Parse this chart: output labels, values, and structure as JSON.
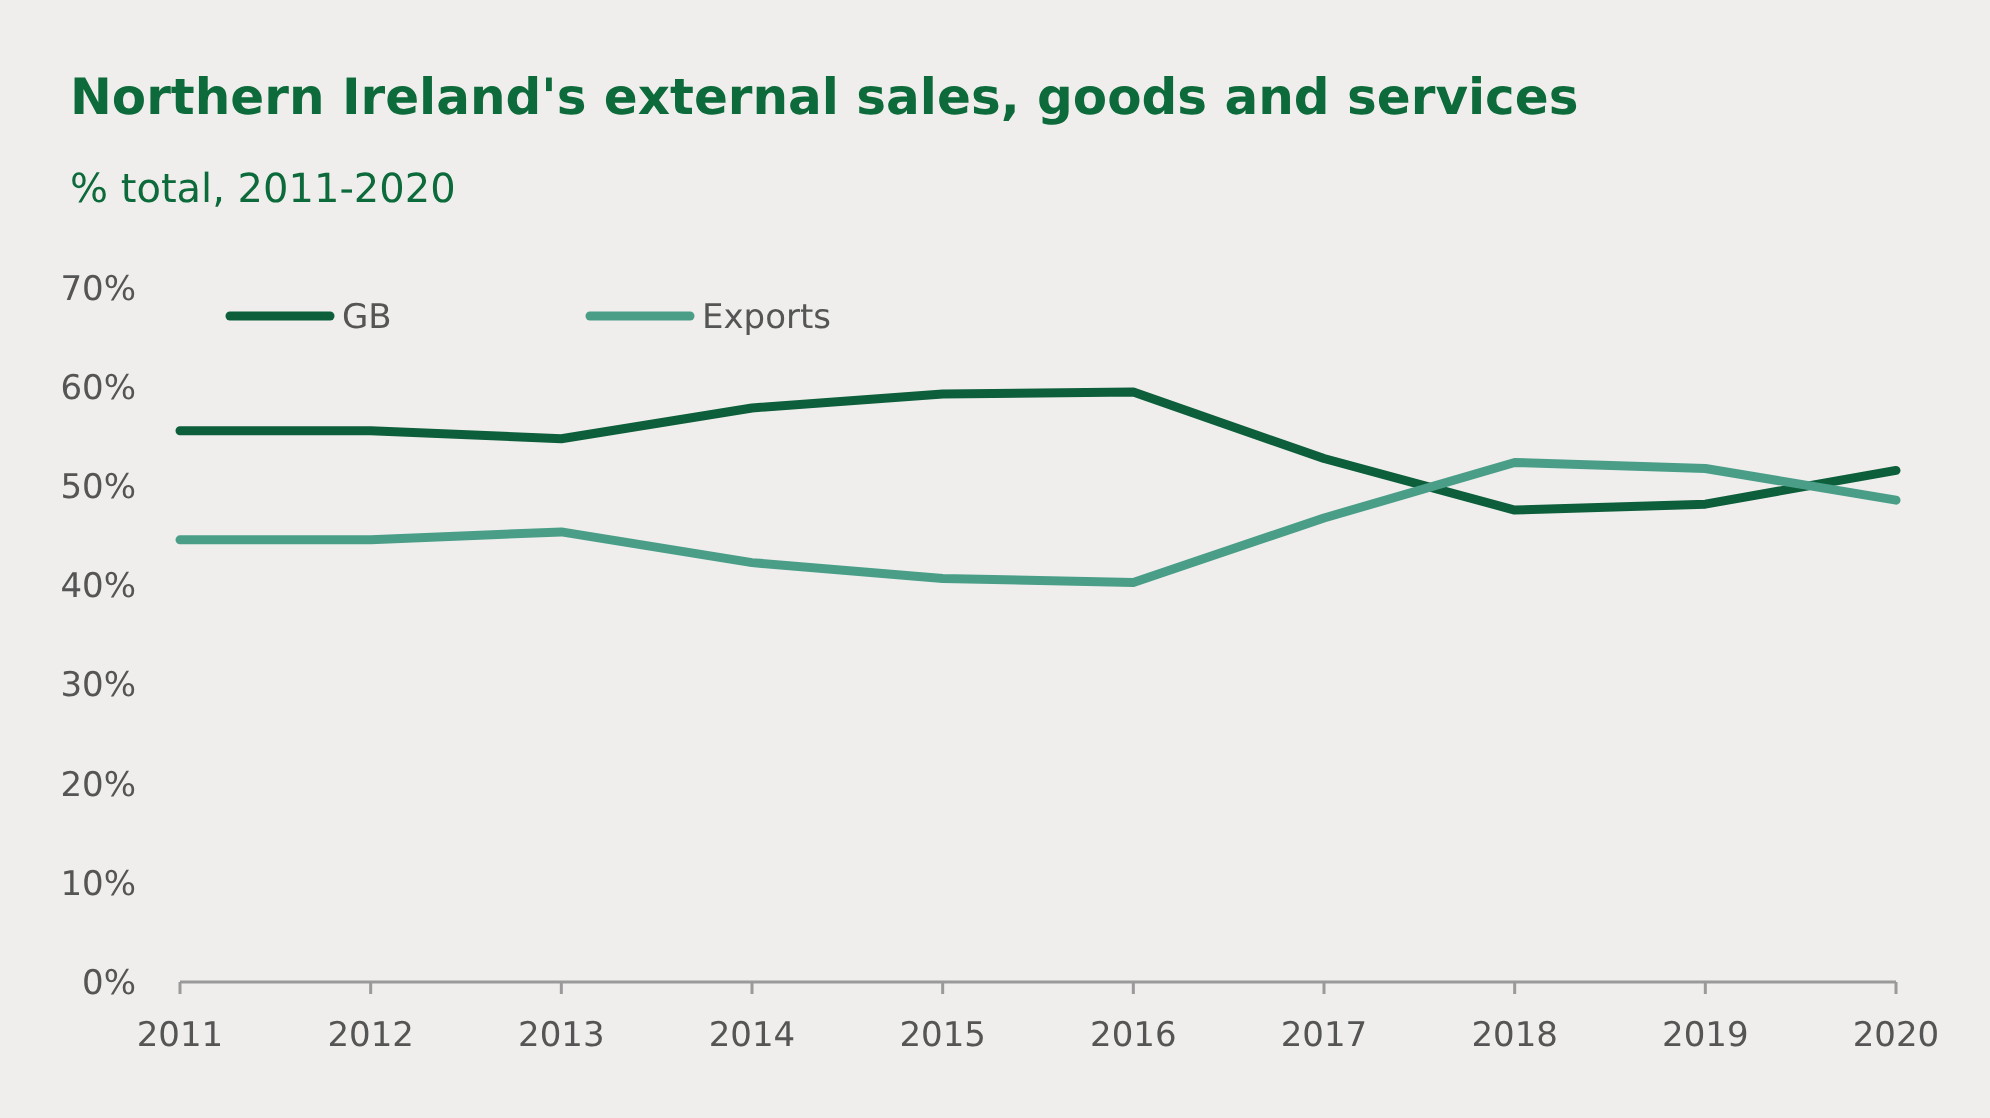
{
  "chart_data": {
    "type": "line",
    "title": "Northern Ireland's external sales, goods and services",
    "subtitle": "% total, 2011-2020",
    "categories": [
      "2011",
      "2012",
      "2013",
      "2014",
      "2015",
      "2016",
      "2017",
      "2018",
      "2019",
      "2020"
    ],
    "series": [
      {
        "name": "GB",
        "color": "#0d5e3b",
        "values": [
          55.6,
          55.6,
          54.8,
          57.9,
          59.3,
          59.5,
          52.8,
          47.6,
          48.2,
          51.6
        ]
      },
      {
        "name": "Exports",
        "color": "#4a9e88",
        "values": [
          44.6,
          44.6,
          45.4,
          42.3,
          40.7,
          40.3,
          46.8,
          52.4,
          51.8,
          48.6
        ]
      }
    ],
    "ylim": [
      0,
      70
    ],
    "yticks": [
      {
        "value": 0,
        "label": "0%"
      },
      {
        "value": 10,
        "label": "10%"
      },
      {
        "value": 20,
        "label": "20%"
      },
      {
        "value": 30,
        "label": "30%"
      },
      {
        "value": 40,
        "label": "40%"
      },
      {
        "value": 50,
        "label": "50%"
      },
      {
        "value": 60,
        "label": "60%"
      },
      {
        "value": 70,
        "label": "70%"
      }
    ],
    "grid": false,
    "legend": "top left",
    "marker": "none",
    "line_style": "solid"
  }
}
